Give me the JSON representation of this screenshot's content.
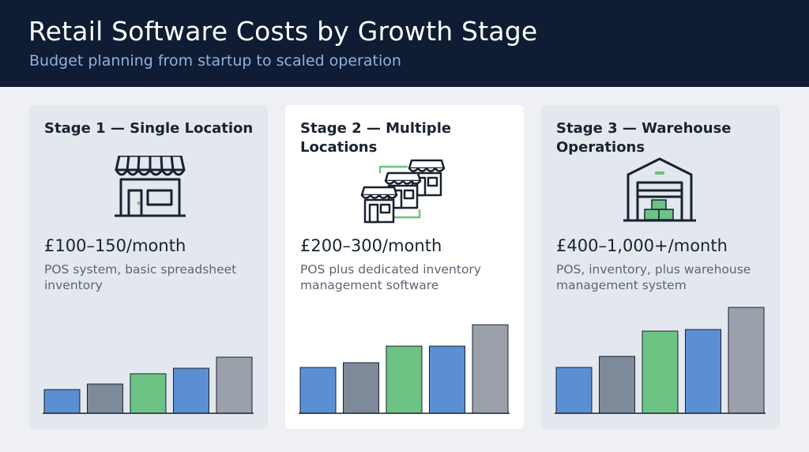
{
  "header": {
    "title": "Retail Software Costs by Growth Stage",
    "subtitle": "Budget planning from startup to scaled operation"
  },
  "colors": {
    "header_bg": "#0f1c33",
    "bar_blue": "#5b8fd3",
    "bar_gray": "#7e8a9a",
    "bar_green": "#6cc384",
    "bar_light_gray": "#9aa1aa",
    "icon_accent_green": "#6cc384"
  },
  "stages": [
    {
      "title": "Stage 1 — Single Location",
      "icon": "storefront-icon",
      "price": "£100–150/month",
      "description": "POS system, basic spreadsheet inventory",
      "highlight": false,
      "bars": [
        {
          "value": 30,
          "color": "#5b8fd3"
        },
        {
          "value": 37,
          "color": "#7e8a9a"
        },
        {
          "value": 50,
          "color": "#6cc384"
        },
        {
          "value": 57,
          "color": "#5b8fd3"
        },
        {
          "value": 71,
          "color": "#9aa1aa"
        }
      ]
    },
    {
      "title": "Stage 2 — Multiple Locations",
      "icon": "multiple-stores-icon",
      "price": "£200–300/month",
      "description": "POS plus dedicated inventory management software",
      "highlight": true,
      "bars": [
        {
          "value": 58,
          "color": "#5b8fd3"
        },
        {
          "value": 64,
          "color": "#7e8a9a"
        },
        {
          "value": 85,
          "color": "#6cc384"
        },
        {
          "value": 85,
          "color": "#5b8fd3"
        },
        {
          "value": 112,
          "color": "#9aa1aa"
        }
      ]
    },
    {
      "title": "Stage 3 — Warehouse Operations",
      "icon": "warehouse-icon",
      "price": "£400–1,000+/month",
      "description": "POS, inventory, plus warehouse management system",
      "highlight": false,
      "bars": [
        {
          "value": 58,
          "color": "#5b8fd3"
        },
        {
          "value": 72,
          "color": "#7e8a9a"
        },
        {
          "value": 104,
          "color": "#6cc384"
        },
        {
          "value": 106,
          "color": "#5b8fd3"
        },
        {
          "value": 134,
          "color": "#9aa1aa"
        }
      ]
    }
  ]
}
